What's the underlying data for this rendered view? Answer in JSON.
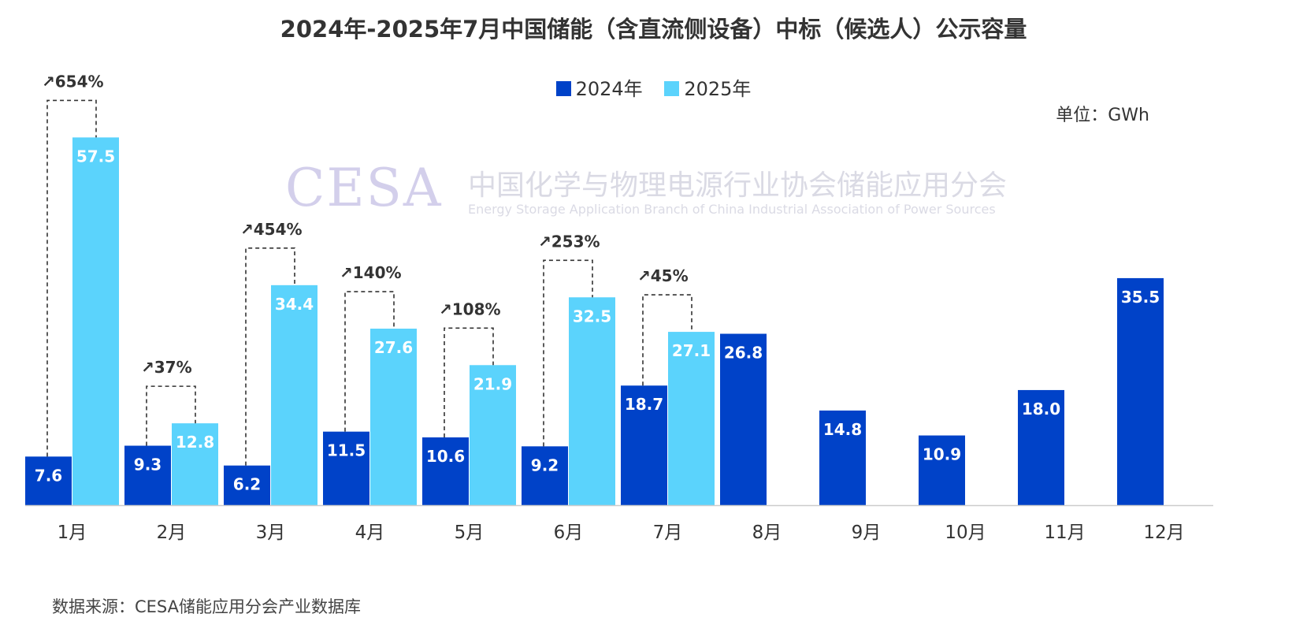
{
  "colors": {
    "series_2024": "#0042c8",
    "series_2025": "#5bd3fc",
    "axis": "#cccccc",
    "bracket": "#333333"
  },
  "watermark": {
    "logo": "CESA",
    "org_name": "中国化学与物理电源行业协会储能应用分会",
    "org_name_en": "Energy Storage Application Branch of China Industrial Association of Power Sources"
  },
  "unit": "单位：GWh",
  "source": "数据来源：CESA储能应用分会产业数据库",
  "chart_data": {
    "type": "bar",
    "title": "2024年-2025年7月中国储能（含直流侧设备）中标（候选人）公示容量",
    "xlabel": "",
    "ylabel": "",
    "ylim": [
      0,
      60
    ],
    "grid": false,
    "legend_position": "top-center",
    "categories": [
      "1月",
      "2月",
      "3月",
      "4月",
      "5月",
      "6月",
      "7月",
      "8月",
      "9月",
      "10月",
      "11月",
      "12月"
    ],
    "series": [
      {
        "name": "2024年",
        "values": [
          7.6,
          9.3,
          6.2,
          11.5,
          10.6,
          9.2,
          18.7,
          26.8,
          14.8,
          10.9,
          18.0,
          35.5
        ],
        "labels": [
          "7.6",
          "9.3",
          "6.2",
          "11.5",
          "10.6",
          "9.2",
          "18.7",
          "26.8",
          "14.8",
          "10.9",
          "18.0",
          "35.5"
        ]
      },
      {
        "name": "2025年",
        "values": [
          57.5,
          12.8,
          34.4,
          27.6,
          21.9,
          32.5,
          27.1,
          null,
          null,
          null,
          null,
          null
        ],
        "labels": [
          "57.5",
          "12.8",
          "34.4",
          "27.6",
          "21.9",
          "32.5",
          "27.1",
          null,
          null,
          null,
          null,
          null
        ]
      }
    ],
    "growth_annotations": [
      "↗654%",
      "↗37%",
      "↗454%",
      "↗140%",
      "↗108%",
      "↗253%",
      "↗45%"
    ]
  }
}
